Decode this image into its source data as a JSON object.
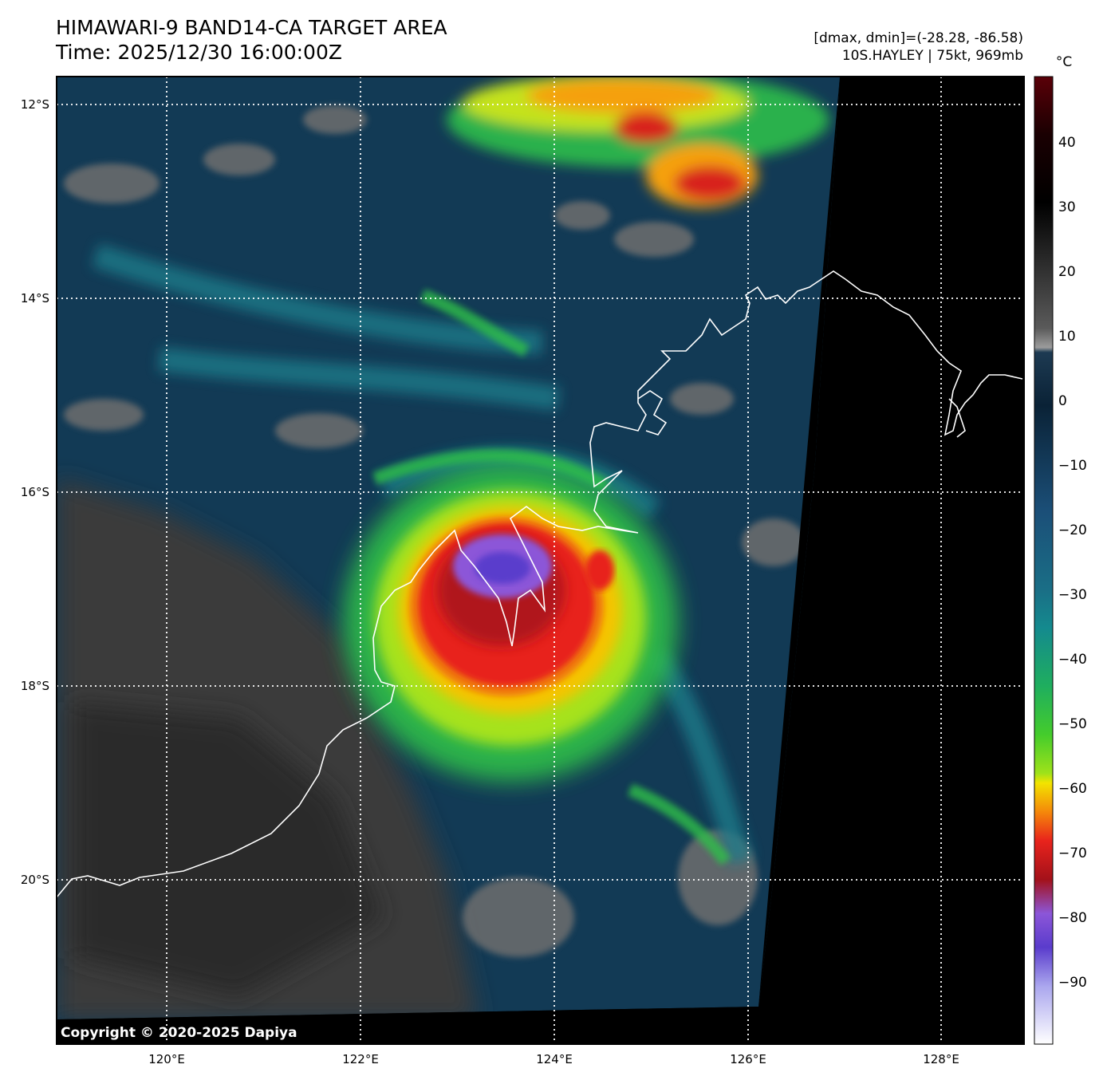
{
  "header": {
    "title": "HIMAWARI-9 BAND14-CA TARGET AREA",
    "time": "Time: 2025/12/30 16:00:00Z",
    "range": "[dmax, dmin]=(-28.28, -86.58)",
    "storm": "10S.HAYLEY | 75kt, 969mb"
  },
  "map": {
    "lat_labels": [
      "12°S",
      "14°S",
      "16°S",
      "18°S",
      "20°S"
    ],
    "lon_labels": [
      "120°E",
      "122°E",
      "124°E",
      "126°E",
      "128°E"
    ],
    "copyright": "Copyright © 2020-2025 Dapiya"
  },
  "colorbar": {
    "unit": "°C",
    "ticks": [
      "40",
      "30",
      "20",
      "10",
      "0",
      "−10",
      "−20",
      "−30",
      "−40",
      "−50",
      "−60",
      "−70",
      "−80",
      "−90"
    ],
    "colors": {
      "warm_top": "#5a0008",
      "black": "#000000",
      "gray": "#8c8c8c",
      "dark_blue": "#0b3049",
      "blue": "#1f5a82",
      "teal": "#16868e",
      "green": "#33c24a",
      "lime": "#9ee21a",
      "yellow": "#f2e400",
      "orange": "#f5880a",
      "red": "#e8231c",
      "dark_red": "#a3111a",
      "purple": "#8c56d8",
      "indigo": "#5a3ccc",
      "white": "#ffffff"
    }
  }
}
